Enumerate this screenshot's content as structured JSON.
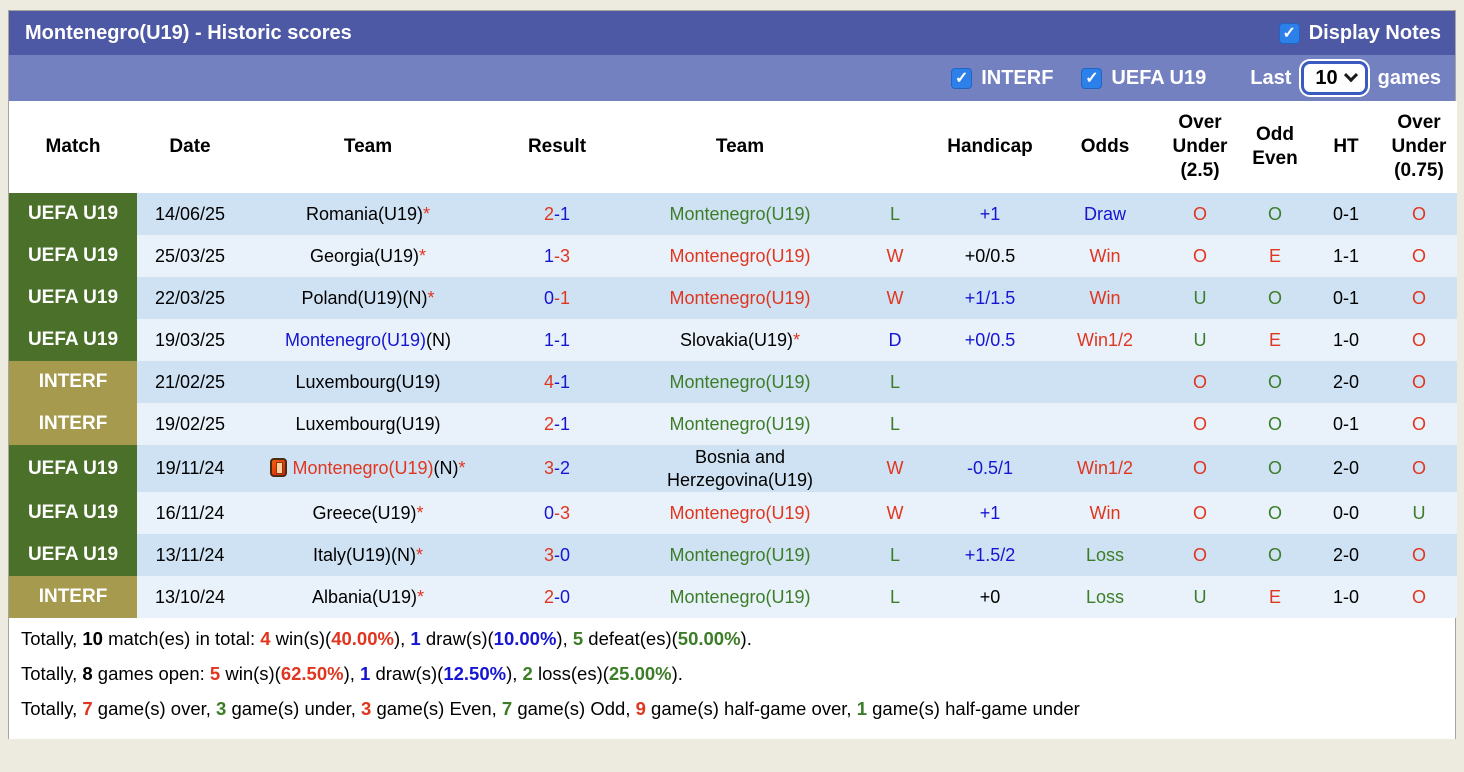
{
  "header": {
    "title": "Montenegro(U19) - Historic scores",
    "display_notes_label": "Display Notes"
  },
  "filters": {
    "interf_label": "INTERF",
    "uefa_label": "UEFA U19",
    "last_label": "Last",
    "games_label": "games",
    "last_count": "10"
  },
  "colors": {
    "bar_top": "#4d59a5",
    "bar_sub": "#7481c1",
    "uefa_badge": "#4a7029",
    "interf_badge": "#a59a4e",
    "row_odd": "#cfe2f3",
    "row_even": "#e9f2fa",
    "red": "#e0361f",
    "blue": "#1515d2",
    "green": "#3c7d28",
    "checkbox_blue": "#2d80e9"
  },
  "table": {
    "headers": [
      "Match",
      "Date",
      "Team",
      "Result",
      "Team",
      "",
      "Handicap",
      "Odds",
      "Over Under (2.5)",
      "Odd Even",
      "HT",
      "Over Under (0.75)"
    ],
    "rows": [
      {
        "league": "UEFA U19",
        "league_class": "uefa",
        "date": "14/06/25",
        "icon": false,
        "tall": false,
        "home": [
          {
            "t": "Romania(U19)",
            "c": "k"
          },
          {
            "t": "*",
            "c": "r"
          }
        ],
        "score": {
          "h": "2",
          "hc": "r",
          "a": "1",
          "ac": "b"
        },
        "away": [
          {
            "t": "Montenegro(U19)",
            "c": "g"
          }
        ],
        "letter": {
          "t": "L",
          "c": "g"
        },
        "handicap": {
          "t": "+1",
          "c": "b"
        },
        "odds": {
          "t": "Draw",
          "c": "b"
        },
        "ou25": {
          "t": "O",
          "c": "r"
        },
        "oddeven": {
          "t": "O",
          "c": "g"
        },
        "ht": "0-1",
        "ou075": {
          "t": "O",
          "c": "r"
        }
      },
      {
        "league": "UEFA U19",
        "league_class": "uefa",
        "date": "25/03/25",
        "icon": false,
        "tall": false,
        "home": [
          {
            "t": "Georgia(U19)",
            "c": "k"
          },
          {
            "t": "*",
            "c": "r"
          }
        ],
        "score": {
          "h": "1",
          "hc": "b",
          "a": "3",
          "ac": "r"
        },
        "away": [
          {
            "t": "Montenegro(U19)",
            "c": "r"
          }
        ],
        "letter": {
          "t": "W",
          "c": "r"
        },
        "handicap": {
          "t": "+0/0.5",
          "c": "k"
        },
        "odds": {
          "t": "Win",
          "c": "r"
        },
        "ou25": {
          "t": "O",
          "c": "r"
        },
        "oddeven": {
          "t": "E",
          "c": "r"
        },
        "ht": "1-1",
        "ou075": {
          "t": "O",
          "c": "r"
        }
      },
      {
        "league": "UEFA U19",
        "league_class": "uefa",
        "date": "22/03/25",
        "icon": false,
        "tall": false,
        "home": [
          {
            "t": "Poland(U19)(N)",
            "c": "k"
          },
          {
            "t": "*",
            "c": "r"
          }
        ],
        "score": {
          "h": "0",
          "hc": "b",
          "a": "1",
          "ac": "r"
        },
        "away": [
          {
            "t": "Montenegro(U19)",
            "c": "r"
          }
        ],
        "letter": {
          "t": "W",
          "c": "r"
        },
        "handicap": {
          "t": "+1/1.5",
          "c": "b"
        },
        "odds": {
          "t": "Win",
          "c": "r"
        },
        "ou25": {
          "t": "U",
          "c": "g"
        },
        "oddeven": {
          "t": "O",
          "c": "g"
        },
        "ht": "0-1",
        "ou075": {
          "t": "O",
          "c": "r"
        }
      },
      {
        "league": "UEFA U19",
        "league_class": "uefa",
        "date": "19/03/25",
        "icon": false,
        "tall": false,
        "home": [
          {
            "t": "Montenegro(U19)",
            "c": "b"
          },
          {
            "t": "(N)",
            "c": "k"
          }
        ],
        "score": {
          "h": "1",
          "hc": "b",
          "a": "1",
          "ac": "b"
        },
        "away": [
          {
            "t": "Slovakia(U19)",
            "c": "k"
          },
          {
            "t": "*",
            "c": "r"
          }
        ],
        "letter": {
          "t": "D",
          "c": "b"
        },
        "handicap": {
          "t": "+0/0.5",
          "c": "b"
        },
        "odds": {
          "t": "Win1/2",
          "c": "r"
        },
        "ou25": {
          "t": "U",
          "c": "g"
        },
        "oddeven": {
          "t": "E",
          "c": "r"
        },
        "ht": "1-0",
        "ou075": {
          "t": "O",
          "c": "r"
        }
      },
      {
        "league": "INTERF",
        "league_class": "interf",
        "date": "21/02/25",
        "icon": false,
        "tall": false,
        "home": [
          {
            "t": "Luxembourg(U19)",
            "c": "k"
          }
        ],
        "score": {
          "h": "4",
          "hc": "r",
          "a": "1",
          "ac": "b"
        },
        "away": [
          {
            "t": "Montenegro(U19)",
            "c": "g"
          }
        ],
        "letter": {
          "t": "L",
          "c": "g"
        },
        "handicap": {
          "t": "",
          "c": "k"
        },
        "odds": {
          "t": "",
          "c": "k"
        },
        "ou25": {
          "t": "O",
          "c": "r"
        },
        "oddeven": {
          "t": "O",
          "c": "g"
        },
        "ht": "2-0",
        "ou075": {
          "t": "O",
          "c": "r"
        }
      },
      {
        "league": "INTERF",
        "league_class": "interf",
        "date": "19/02/25",
        "icon": false,
        "tall": false,
        "home": [
          {
            "t": "Luxembourg(U19)",
            "c": "k"
          }
        ],
        "score": {
          "h": "2",
          "hc": "r",
          "a": "1",
          "ac": "b"
        },
        "away": [
          {
            "t": "Montenegro(U19)",
            "c": "g"
          }
        ],
        "letter": {
          "t": "L",
          "c": "g"
        },
        "handicap": {
          "t": "",
          "c": "k"
        },
        "odds": {
          "t": "",
          "c": "k"
        },
        "ou25": {
          "t": "O",
          "c": "r"
        },
        "oddeven": {
          "t": "O",
          "c": "g"
        },
        "ht": "0-1",
        "ou075": {
          "t": "O",
          "c": "r"
        }
      },
      {
        "league": "UEFA U19",
        "league_class": "uefa",
        "date": "19/11/24",
        "icon": true,
        "tall": true,
        "home": [
          {
            "t": "Montenegro(U19)",
            "c": "r"
          },
          {
            "t": "(N)",
            "c": "k"
          },
          {
            "t": "*",
            "c": "r"
          }
        ],
        "score": {
          "h": "3",
          "hc": "r",
          "a": "2",
          "ac": "b"
        },
        "away": [
          {
            "t": "Bosnia and Herzegovina(U19)",
            "c": "k"
          }
        ],
        "letter": {
          "t": "W",
          "c": "r"
        },
        "handicap": {
          "t": "-0.5/1",
          "c": "b"
        },
        "odds": {
          "t": "Win1/2",
          "c": "r"
        },
        "ou25": {
          "t": "O",
          "c": "r"
        },
        "oddeven": {
          "t": "O",
          "c": "g"
        },
        "ht": "2-0",
        "ou075": {
          "t": "O",
          "c": "r"
        }
      },
      {
        "league": "UEFA U19",
        "league_class": "uefa",
        "date": "16/11/24",
        "icon": false,
        "tall": false,
        "home": [
          {
            "t": "Greece(U19)",
            "c": "k"
          },
          {
            "t": "*",
            "c": "r"
          }
        ],
        "score": {
          "h": "0",
          "hc": "b",
          "a": "3",
          "ac": "r"
        },
        "away": [
          {
            "t": "Montenegro(U19)",
            "c": "r"
          }
        ],
        "letter": {
          "t": "W",
          "c": "r"
        },
        "handicap": {
          "t": "+1",
          "c": "b"
        },
        "odds": {
          "t": "Win",
          "c": "r"
        },
        "ou25": {
          "t": "O",
          "c": "r"
        },
        "oddeven": {
          "t": "O",
          "c": "g"
        },
        "ht": "0-0",
        "ou075": {
          "t": "U",
          "c": "g"
        }
      },
      {
        "league": "UEFA U19",
        "league_class": "uefa",
        "date": "13/11/24",
        "icon": false,
        "tall": false,
        "home": [
          {
            "t": "Italy(U19)(N)",
            "c": "k"
          },
          {
            "t": "*",
            "c": "r"
          }
        ],
        "score": {
          "h": "3",
          "hc": "r",
          "a": "0",
          "ac": "b"
        },
        "away": [
          {
            "t": "Montenegro(U19)",
            "c": "g"
          }
        ],
        "letter": {
          "t": "L",
          "c": "g"
        },
        "handicap": {
          "t": "+1.5/2",
          "c": "b"
        },
        "odds": {
          "t": "Loss",
          "c": "g"
        },
        "ou25": {
          "t": "O",
          "c": "r"
        },
        "oddeven": {
          "t": "O",
          "c": "g"
        },
        "ht": "2-0",
        "ou075": {
          "t": "O",
          "c": "r"
        }
      },
      {
        "league": "INTERF",
        "league_class": "interf",
        "date": "13/10/24",
        "icon": false,
        "tall": false,
        "home": [
          {
            "t": "Albania(U19)",
            "c": "k"
          },
          {
            "t": "*",
            "c": "r"
          }
        ],
        "score": {
          "h": "2",
          "hc": "r",
          "a": "0",
          "ac": "b"
        },
        "away": [
          {
            "t": "Montenegro(U19)",
            "c": "g"
          }
        ],
        "letter": {
          "t": "L",
          "c": "g"
        },
        "handicap": {
          "t": "+0",
          "c": "k"
        },
        "odds": {
          "t": "Loss",
          "c": "g"
        },
        "ou25": {
          "t": "U",
          "c": "g"
        },
        "oddeven": {
          "t": "E",
          "c": "r"
        },
        "ht": "1-0",
        "ou075": {
          "t": "O",
          "c": "r"
        }
      }
    ]
  },
  "summary": {
    "lines": [
      [
        {
          "t": "Totally, ",
          "c": "k",
          "b": false
        },
        {
          "t": "10",
          "c": "k",
          "b": true
        },
        {
          "t": " match(es) in total: ",
          "c": "k",
          "b": false
        },
        {
          "t": "4",
          "c": "r",
          "b": true
        },
        {
          "t": " win(s)(",
          "c": "k",
          "b": false
        },
        {
          "t": "40.00%",
          "c": "r",
          "b": true
        },
        {
          "t": "), ",
          "c": "k",
          "b": false
        },
        {
          "t": "1",
          "c": "b",
          "b": true
        },
        {
          "t": " draw(s)(",
          "c": "k",
          "b": false
        },
        {
          "t": "10.00%",
          "c": "b",
          "b": true
        },
        {
          "t": "), ",
          "c": "k",
          "b": false
        },
        {
          "t": "5",
          "c": "g",
          "b": true
        },
        {
          "t": " defeat(es)(",
          "c": "k",
          "b": false
        },
        {
          "t": "50.00%",
          "c": "g",
          "b": true
        },
        {
          "t": ").",
          "c": "k",
          "b": false
        }
      ],
      [
        {
          "t": "Totally, ",
          "c": "k",
          "b": false
        },
        {
          "t": "8",
          "c": "k",
          "b": true
        },
        {
          "t": " games open: ",
          "c": "k",
          "b": false
        },
        {
          "t": "5",
          "c": "r",
          "b": true
        },
        {
          "t": " win(s)(",
          "c": "k",
          "b": false
        },
        {
          "t": "62.50%",
          "c": "r",
          "b": true
        },
        {
          "t": "), ",
          "c": "k",
          "b": false
        },
        {
          "t": "1",
          "c": "b",
          "b": true
        },
        {
          "t": " draw(s)(",
          "c": "k",
          "b": false
        },
        {
          "t": "12.50%",
          "c": "b",
          "b": true
        },
        {
          "t": "), ",
          "c": "k",
          "b": false
        },
        {
          "t": "2",
          "c": "g",
          "b": true
        },
        {
          "t": " loss(es)(",
          "c": "k",
          "b": false
        },
        {
          "t": "25.00%",
          "c": "g",
          "b": true
        },
        {
          "t": ").",
          "c": "k",
          "b": false
        }
      ],
      [
        {
          "t": "Totally, ",
          "c": "k",
          "b": false
        },
        {
          "t": "7",
          "c": "r",
          "b": true
        },
        {
          "t": " game(s) over, ",
          "c": "k",
          "b": false
        },
        {
          "t": "3",
          "c": "g",
          "b": true
        },
        {
          "t": " game(s) under, ",
          "c": "k",
          "b": false
        },
        {
          "t": "3",
          "c": "r",
          "b": true
        },
        {
          "t": " game(s) Even, ",
          "c": "k",
          "b": false
        },
        {
          "t": "7",
          "c": "g",
          "b": true
        },
        {
          "t": " game(s) Odd, ",
          "c": "k",
          "b": false
        },
        {
          "t": "9",
          "c": "r",
          "b": true
        },
        {
          "t": " game(s) half-game over, ",
          "c": "k",
          "b": false
        },
        {
          "t": "1",
          "c": "g",
          "b": true
        },
        {
          "t": " game(s) half-game under",
          "c": "k",
          "b": false
        }
      ]
    ]
  }
}
